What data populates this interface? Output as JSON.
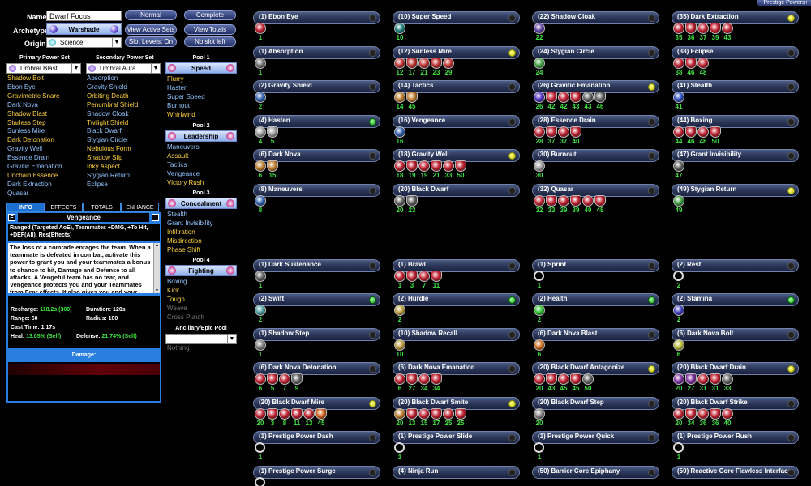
{
  "header": {
    "prestige_tab": "+Prestige Powers+"
  },
  "character": {
    "name_label": "Name:",
    "name_value": "Dwarf Focus",
    "archetype_label": "Archetype:",
    "archetype_value": "Warshade",
    "origin_label": "Origin:",
    "origin_value": "Science"
  },
  "buttons": {
    "normal": "Normal",
    "complete": "Complete",
    "view_active_sets": "View Active Sets",
    "view_totals": "View Totals",
    "slot_levels": "Slot Levels: On",
    "no_slot_left": "No slot left"
  },
  "primary": {
    "header": "Primary Power Set",
    "selected": "Umbral Blast",
    "powers": [
      {
        "name": "Shadow Bolt",
        "color": "#ffd23f"
      },
      {
        "name": "Ebon Eye",
        "color": "#8fc3ff"
      },
      {
        "name": "Gravimetric Snare",
        "color": "#ffd23f"
      },
      {
        "name": "Dark Nova",
        "color": "#8fc3ff"
      },
      {
        "name": "Shadow Blast",
        "color": "#ffd23f"
      },
      {
        "name": "Starless Step",
        "color": "#ffd23f"
      },
      {
        "name": "Sunless Mire",
        "color": "#8fc3ff"
      },
      {
        "name": "Dark Detonation",
        "color": "#ffd23f"
      },
      {
        "name": "Gravity Well",
        "color": "#8fc3ff"
      },
      {
        "name": "Essence Drain",
        "color": "#8fc3ff"
      },
      {
        "name": "Gravitic Emanation",
        "color": "#8fc3ff"
      },
      {
        "name": "Unchain Essence",
        "color": "#ffd23f"
      },
      {
        "name": "Dark Extraction",
        "color": "#8fc3ff"
      },
      {
        "name": "Quasar",
        "color": "#8fc3ff"
      }
    ]
  },
  "secondary": {
    "header": "Secondary Power Set",
    "selected": "Umbral Aura",
    "powers": [
      {
        "name": "Absorption",
        "color": "#8fc3ff"
      },
      {
        "name": "Gravity Shield",
        "color": "#8fc3ff"
      },
      {
        "name": "Orbiting Death",
        "color": "#ffd23f"
      },
      {
        "name": "Penumbral Shield",
        "color": "#ffd23f"
      },
      {
        "name": "Shadow Cloak",
        "color": "#8fc3ff"
      },
      {
        "name": "Twilight Shield",
        "color": "#ffd23f"
      },
      {
        "name": "Black Dwarf",
        "color": "#8fc3ff"
      },
      {
        "name": "Stygian Circle",
        "color": "#8fc3ff"
      },
      {
        "name": "Nebulous Form",
        "color": "#ffd23f"
      },
      {
        "name": "Shadow Slip",
        "color": "#ffd23f"
      },
      {
        "name": "Inky Aspect",
        "color": "#ffd23f"
      },
      {
        "name": "Stygian Return",
        "color": "#8fc3ff"
      },
      {
        "name": "Eclipse",
        "color": "#8fc3ff"
      }
    ]
  },
  "pools": [
    {
      "header": "Pool 1",
      "selected": "Speed",
      "powers": [
        {
          "name": "Flurry",
          "color": "#ffd23f"
        },
        {
          "name": "Hasten",
          "color": "#8fc3ff"
        },
        {
          "name": "Super Speed",
          "color": "#8fc3ff"
        },
        {
          "name": "Burnout",
          "color": "#8fc3ff"
        },
        {
          "name": "Whirlwind",
          "color": "#ffd23f"
        }
      ]
    },
    {
      "header": "Pool 2",
      "selected": "Leadership",
      "powers": [
        {
          "name": "Maneuvers",
          "color": "#8fc3ff"
        },
        {
          "name": "Assault",
          "color": "#ffd23f"
        },
        {
          "name": "Tactics",
          "color": "#8fc3ff"
        },
        {
          "name": "Vengeance",
          "color": "#8fc3ff"
        },
        {
          "name": "Victory Rush",
          "color": "#ffd23f"
        }
      ]
    },
    {
      "header": "Pool 3",
      "selected": "Concealment",
      "powers": [
        {
          "name": "Stealth",
          "color": "#8fc3ff"
        },
        {
          "name": "Grant Invisibility",
          "color": "#8fc3ff"
        },
        {
          "name": "Infiltration",
          "color": "#ffd23f"
        },
        {
          "name": "Misdirection",
          "color": "#ffd23f"
        },
        {
          "name": "Phase Shift",
          "color": "#ffd23f"
        }
      ]
    },
    {
      "header": "Pool 4",
      "selected": "Fighting",
      "powers": [
        {
          "name": "Boxing",
          "color": "#8fc3ff"
        },
        {
          "name": "Kick",
          "color": "#ffd23f"
        },
        {
          "name": "Tough",
          "color": "#ffd23f"
        },
        {
          "name": "Weave",
          "color": "#777777"
        },
        {
          "name": "Cross Punch",
          "color": "#777777"
        }
      ]
    }
  ],
  "epic": {
    "header": "Ancillary/Epic Pool",
    "selected": "",
    "powers": [
      {
        "name": "Nothing",
        "color": "#777777"
      }
    ]
  },
  "tabs": [
    "INFO",
    "EFFECTS",
    "TOTALS",
    "ENHANCE"
  ],
  "info": {
    "flag": "F",
    "title": "Vengeance",
    "summary": "Ranged (Targeted AoE), Teammates +DMG, +To Hit, +DEF(All), Res(Effects)",
    "description": "The loss of a comrade enrages the team. When a teammate is defeated in combat, activate this power to grant you and your teammates a bonus to chance to hit, Damage and Defense to all attacks. A Vengeful team has no fear, and Vengeance protects you and your Teammates from Fear effects. It also gives you and your team",
    "recharge_label": "Recharge:",
    "recharge_value": "118.2s (300)",
    "duration_label": "Duration:",
    "duration_value": "120s",
    "range_label": "Range:",
    "range_value": "60",
    "radius_label": "Radius:",
    "radius_value": "100",
    "cast_label": "Cast Time:",
    "cast_value": "1.17s",
    "heal_label": "Heal:",
    "heal_value": "13.05% (Self)",
    "defense_label": "Defense:",
    "defense_value": "21.74% (Self)",
    "damage_label": "Damage:"
  },
  "slots": [
    {
      "title": "(1) Ebon Eye",
      "dot": "dark",
      "enh": [
        {
          "c": "#c02030",
          "l": "1"
        }
      ]
    },
    {
      "title": "(10) Super Speed",
      "dot": "dark",
      "enh": [
        {
          "c": "#208080",
          "l": "10"
        }
      ]
    },
    {
      "title": "(22) Shadow Cloak",
      "dot": "dark",
      "enh": [
        {
          "c": "#6040a0",
          "l": "22"
        }
      ]
    },
    {
      "title": "(35) Dark Extraction",
      "dot": "yel",
      "enh": [
        {
          "c": "#c02030",
          "l": "35"
        },
        {
          "c": "#c02030",
          "l": "36"
        },
        {
          "c": "#c02030",
          "l": "37"
        },
        {
          "c": "#c02030",
          "l": "39"
        },
        {
          "c": "#c02030",
          "l": "43"
        }
      ]
    },
    {
      "title": "(1) Absorption",
      "dot": "dark",
      "enh": [
        {
          "c": "#707070",
          "l": "1"
        }
      ]
    },
    {
      "title": "(12) Sunless Mire",
      "dot": "yel",
      "enh": [
        {
          "c": "#c03030",
          "l": "12"
        },
        {
          "c": "#c03030",
          "l": "17"
        },
        {
          "c": "#c03030",
          "l": "21"
        },
        {
          "c": "#c03030",
          "l": "23"
        },
        {
          "c": "#c03030",
          "l": "29"
        }
      ]
    },
    {
      "title": "(24) Stygian Circle",
      "dot": "dark",
      "enh": [
        {
          "c": "#40a040",
          "l": "24"
        }
      ]
    },
    {
      "title": "(38) Eclipse",
      "dot": "dark",
      "enh": [
        {
          "c": "#c02030",
          "l": "38"
        },
        {
          "c": "#c02030",
          "l": "46"
        },
        {
          "c": "#c02030",
          "l": "48"
        }
      ]
    },
    {
      "title": "(2) Gravity Shield",
      "dot": "dark",
      "enh": [
        {
          "c": "#3060b0",
          "l": "2"
        }
      ]
    },
    {
      "title": "(14) Tactics",
      "dot": "dark",
      "enh": [
        {
          "c": "#c08030",
          "l": "14"
        },
        {
          "c": "#c08030",
          "l": "45"
        }
      ]
    },
    {
      "title": "(26) Gravitic Emanation",
      "dot": "yel",
      "enh": [
        {
          "c": "#5030c0",
          "l": "26"
        },
        {
          "c": "#c02030",
          "l": "42"
        },
        {
          "c": "#c02030",
          "l": "42"
        },
        {
          "c": "#c02030",
          "l": "43"
        },
        {
          "c": "#606060",
          "l": "43"
        },
        {
          "c": "#606060",
          "l": "46"
        }
      ]
    },
    {
      "title": "(41) Stealth",
      "dot": "dark",
      "enh": [
        {
          "c": "#3050c0",
          "l": "41"
        }
      ]
    },
    {
      "title": "(4) Hasten",
      "dot": "grn",
      "enh": [
        {
          "c": "#a0a0a0",
          "l": "4"
        },
        {
          "c": "#a0a0a0",
          "l": "5"
        }
      ]
    },
    {
      "title": "(16) Vengeance",
      "dot": "dark",
      "enh": [
        {
          "c": "#3060b0",
          "l": "16"
        }
      ]
    },
    {
      "title": "(28) Essence Drain",
      "dot": "dark",
      "enh": [
        {
          "c": "#c02030",
          "l": "28"
        },
        {
          "c": "#c02030",
          "l": "37"
        },
        {
          "c": "#c02030",
          "l": "37"
        },
        {
          "c": "#c02030",
          "l": "40"
        }
      ]
    },
    {
      "title": "(44) Boxing",
      "dot": "dark",
      "enh": [
        {
          "c": "#c02030",
          "l": "44"
        },
        {
          "c": "#c02030",
          "l": "46"
        },
        {
          "c": "#c02030",
          "l": "48"
        },
        {
          "c": "#c02030",
          "l": "50"
        }
      ]
    },
    {
      "title": "(6) Dark Nova",
      "dot": "dark",
      "enh": [
        {
          "c": "#c08030",
          "l": "6"
        },
        {
          "c": "#c08030",
          "l": "15"
        }
      ]
    },
    {
      "title": "(18) Gravity Well",
      "dot": "yel",
      "enh": [
        {
          "c": "#c02030",
          "l": "18"
        },
        {
          "c": "#c02030",
          "l": "19"
        },
        {
          "c": "#c02030",
          "l": "19"
        },
        {
          "c": "#c02030",
          "l": "21"
        },
        {
          "c": "#c02030",
          "l": "33"
        },
        {
          "c": "#c02030",
          "l": "50"
        }
      ]
    },
    {
      "title": "(30) Burnout",
      "dot": "dark",
      "enh": [
        {
          "c": "#a0a0a0",
          "l": "30"
        }
      ]
    },
    {
      "title": "(47) Grant Invisibility",
      "dot": "dark",
      "enh": [
        {
          "c": "#606060",
          "l": "47"
        }
      ]
    },
    {
      "title": "(8) Maneuvers",
      "dot": "dark",
      "enh": [
        {
          "c": "#3060b0",
          "l": "8"
        }
      ]
    },
    {
      "title": "(20) Black Dwarf",
      "dot": "dark",
      "enh": [
        {
          "c": "#606060",
          "l": "20"
        },
        {
          "c": "#606060",
          "l": "23"
        }
      ]
    },
    {
      "title": "(32) Quasar",
      "dot": "dark",
      "enh": [
        {
          "c": "#c02030",
          "l": "32"
        },
        {
          "c": "#c02030",
          "l": "33"
        },
        {
          "c": "#c02030",
          "l": "39"
        },
        {
          "c": "#c02030",
          "l": "39"
        },
        {
          "c": "#c02030",
          "l": "40"
        },
        {
          "c": "#c02030",
          "l": "48"
        }
      ]
    },
    {
      "title": "(49) Stygian Return",
      "dot": "yel",
      "enh": [
        {
          "c": "#40a040",
          "l": "49"
        }
      ]
    },
    {
      "title": "(1) Dark Sustenance",
      "dot": "dark",
      "enh": [
        {
          "c": "#606060",
          "l": "1"
        }
      ]
    },
    {
      "title": "(1) Brawl",
      "dot": "dark",
      "enh": [
        {
          "c": "#c02030",
          "l": "1"
        },
        {
          "c": "#c02030",
          "l": "3"
        },
        {
          "c": "#c02030",
          "l": "7"
        },
        {
          "c": "#c02030",
          "l": "11"
        }
      ]
    },
    {
      "title": "(1) Sprint",
      "dot": "dark",
      "enh": [
        {
          "c": "ring",
          "l": "1"
        }
      ]
    },
    {
      "title": "(2) Rest",
      "dot": "dark",
      "enh": [
        {
          "c": "ring",
          "l": "2"
        }
      ]
    },
    {
      "title": "(2) Swift",
      "dot": "grn",
      "enh": [
        {
          "c": "#50a0a0",
          "l": "2"
        }
      ]
    },
    {
      "title": "(2) Hurdle",
      "dot": "grn",
      "enh": [
        {
          "c": "#c0a040",
          "l": "2"
        }
      ]
    },
    {
      "title": "(2) Health",
      "dot": "grn",
      "enh": [
        {
          "c": "#30c030",
          "l": "2"
        }
      ]
    },
    {
      "title": "(2) Stamina",
      "dot": "grn",
      "enh": [
        {
          "c": "#4040c0",
          "l": "2"
        }
      ]
    },
    {
      "title": "(1) Shadow Step",
      "dot": "dark",
      "enh": [
        {
          "c": "#808080",
          "l": "1"
        }
      ]
    },
    {
      "title": "(10) Shadow Recall",
      "dot": "dark",
      "enh": [
        {
          "c": "#c0a040",
          "l": "10"
        }
      ]
    },
    {
      "title": "(6) Dark Nova Blast",
      "dot": "dark",
      "enh": [
        {
          "c": "#d07020",
          "l": "6"
        }
      ]
    },
    {
      "title": "(6) Dark Nova Bolt",
      "dot": "dark",
      "enh": [
        {
          "c": "#c0c040",
          "l": "6"
        }
      ]
    },
    {
      "title": "(6) Dark Nova Detonation",
      "dot": "dark",
      "enh": [
        {
          "c": "#c02030",
          "l": "6"
        },
        {
          "c": "#c02030",
          "l": "5"
        },
        {
          "c": "#c02030",
          "l": "7"
        },
        {
          "c": "#606060",
          "l": "9"
        }
      ]
    },
    {
      "title": "(6) Dark Nova Emanation",
      "dot": "dark",
      "enh": [
        {
          "c": "#c02030",
          "l": "6"
        },
        {
          "c": "#c02030",
          "l": "27"
        },
        {
          "c": "#c02030",
          "l": "34"
        },
        {
          "c": "#c02030",
          "l": "34"
        }
      ]
    },
    {
      "title": "(20) Black Dwarf Antagonize",
      "dot": "yel",
      "enh": [
        {
          "c": "#c02030",
          "l": "20"
        },
        {
          "c": "#c02030",
          "l": "43"
        },
        {
          "c": "#c02030",
          "l": "45"
        },
        {
          "c": "#c02030",
          "l": "45"
        },
        {
          "c": "#606060",
          "l": "50"
        }
      ]
    },
    {
      "title": "(20) Black Dwarf Drain",
      "dot": "yel",
      "enh": [
        {
          "c": "#8030a0",
          "l": "20"
        },
        {
          "c": "#8030a0",
          "l": "27"
        },
        {
          "c": "#c02030",
          "l": "31"
        },
        {
          "c": "#c02030",
          "l": "31"
        },
        {
          "c": "#606060",
          "l": "33"
        }
      ]
    },
    {
      "title": "(20) Black Dwarf Mire",
      "dot": "yel",
      "enh": [
        {
          "c": "#c02030",
          "l": "20"
        },
        {
          "c": "#c02030",
          "l": "3"
        },
        {
          "c": "#c02030",
          "l": "8"
        },
        {
          "c": "#c02030",
          "l": "11"
        },
        {
          "c": "#c02030",
          "l": "13"
        },
        {
          "c": "#d06020",
          "l": "45"
        }
      ]
    },
    {
      "title": "(20) Black Dwarf Smite",
      "dot": "yel",
      "enh": [
        {
          "c": "#c08030",
          "l": "20"
        },
        {
          "c": "#c02030",
          "l": "13"
        },
        {
          "c": "#c02030",
          "l": "15"
        },
        {
          "c": "#c02030",
          "l": "17"
        },
        {
          "c": "#c02030",
          "l": "25"
        },
        {
          "c": "#c02030",
          "l": "25"
        }
      ]
    },
    {
      "title": "(20) Black Dwarf Step",
      "dot": "dark",
      "enh": [
        {
          "c": "#808080",
          "l": "20"
        }
      ]
    },
    {
      "title": "(20) Black Dwarf Strike",
      "dot": "dark",
      "enh": [
        {
          "c": "#c02030",
          "l": "20"
        },
        {
          "c": "#c02030",
          "l": "34"
        },
        {
          "c": "#c02030",
          "l": "36"
        },
        {
          "c": "#c02030",
          "l": "36"
        },
        {
          "c": "#c02030",
          "l": "40"
        }
      ]
    },
    {
      "title": "(1) Prestige Power Dash",
      "dot": "dark",
      "enh": [
        {
          "c": "ring",
          "l": "1"
        }
      ]
    },
    {
      "title": "(1) Prestige Power Slide",
      "dot": "dark",
      "enh": [
        {
          "c": "ring",
          "l": "1"
        }
      ]
    },
    {
      "title": "(1) Prestige Power Quick",
      "dot": "dark",
      "enh": [
        {
          "c": "ring",
          "l": "1"
        }
      ]
    },
    {
      "title": "(1) Prestige Power Rush",
      "dot": "dark",
      "enh": [
        {
          "c": "ring",
          "l": "1"
        }
      ]
    },
    {
      "title": "(1) Prestige Power Surge",
      "dot": "dark",
      "enh": [
        {
          "c": "ring",
          "l": ""
        }
      ]
    },
    {
      "title": "(4) Ninja Run",
      "dot": "dark",
      "enh": []
    },
    {
      "title": "(50) Barrier Core Epiphany",
      "dot": "dark",
      "enh": []
    },
    {
      "title": "(50) Reactive Core Flawless Interface",
      "dot": "dark",
      "enh": []
    }
  ]
}
